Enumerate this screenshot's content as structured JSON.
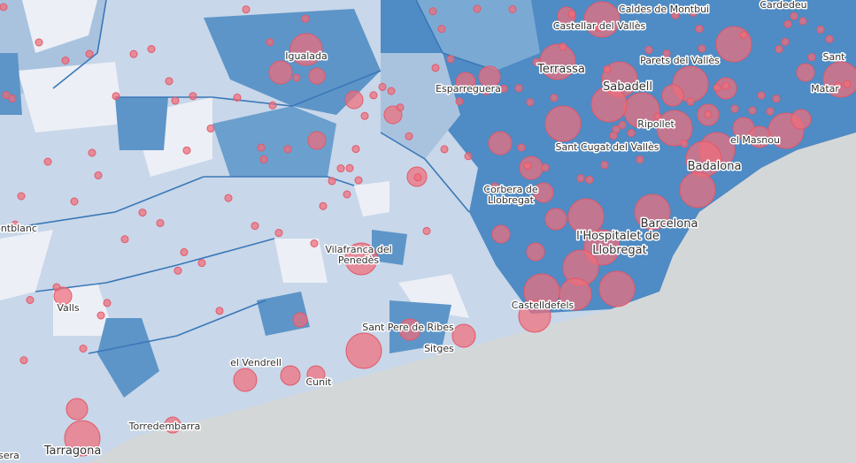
{
  "places": [
    "Caldes de Montbui",
    "Cardedeu",
    "Castellar del Vallès",
    "Igualada",
    "Terrassa",
    "Parets del Vallès",
    "Matar",
    "Sant",
    "Esparreguera",
    "Sabadell",
    "Ripollet",
    "Sant Cugat del Vallès",
    "el Masnou",
    "Badalona",
    "Corbera de",
    "Llobregat",
    "Barcelona",
    "l'Hospitalet de",
    "Llobregat",
    "ontblanc",
    "Vilafranca del",
    "Penedès",
    "Castelldefels",
    "Valls",
    "Sant Pere de Ribes",
    "Sitges",
    "el Vendrell",
    "Cunit",
    "Torredembarra",
    "Tarragona",
    "-sera"
  ]
}
